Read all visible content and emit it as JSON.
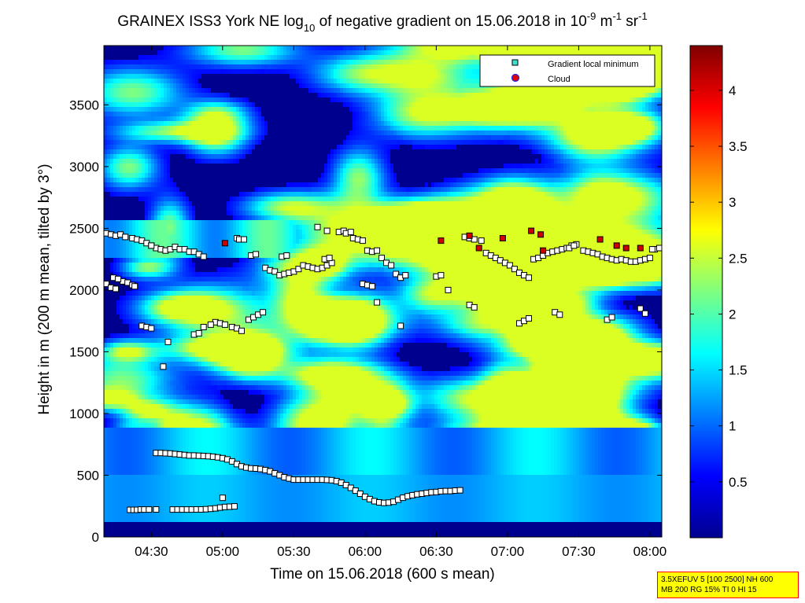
{
  "chart_data": {
    "type": "heatmap",
    "title": {
      "prefix": "GRAINEX ISS3 York NE log",
      "sub": "10",
      "mid": " of negative gradient on 15.06.2018 in 10",
      "sup1": "-9",
      "unit1": " m",
      "sup2": "-1",
      "unit2": " sr",
      "sup3": "-1"
    },
    "xlabel": "Time on 15.06.2018 (600 s mean)",
    "ylabel": "Height in m (200 m mean, tilted by 3°)",
    "x_ticks": [
      "04:30",
      "05:00",
      "05:30",
      "06:00",
      "06:30",
      "07:00",
      "07:30",
      "08:00"
    ],
    "x_tick_minutes": [
      270,
      300,
      330,
      360,
      390,
      420,
      450,
      480
    ],
    "xlim_minutes": [
      250,
      485
    ],
    "y_ticks": [
      0,
      500,
      1000,
      1500,
      2000,
      2500,
      3000,
      3500
    ],
    "ylim": [
      0,
      3980
    ],
    "colorbar": {
      "ticks": [
        0.5,
        1,
        1.5,
        2,
        2.5,
        3,
        3.5,
        4
      ],
      "range": [
        0,
        4.4
      ],
      "colormap": "jet"
    },
    "legend": {
      "placement": "top-right",
      "entries": [
        {
          "label": "Gradient local minimum",
          "marker": "square",
          "color": "#40e0d0"
        },
        {
          "label": "Cloud",
          "marker": "circle",
          "color": "#e00000",
          "edge": "#2020ff"
        }
      ]
    },
    "series": [
      {
        "name": "Gradient local minimum",
        "points": [
          [
            261.0,
            220
          ],
          [
            262.5,
            220
          ],
          [
            264,
            220
          ],
          [
            265.5,
            222
          ],
          [
            267,
            222
          ],
          [
            269,
            222
          ],
          [
            272,
            223
          ],
          [
            279.0,
            222
          ],
          [
            281,
            222
          ],
          [
            283,
            222
          ],
          [
            285,
            222
          ],
          [
            287,
            222
          ],
          [
            289,
            223
          ],
          [
            291,
            223
          ],
          [
            293,
            225
          ],
          [
            295,
            228
          ],
          [
            297,
            232
          ],
          [
            299,
            238
          ],
          [
            301,
            243
          ],
          [
            303,
            245
          ],
          [
            305,
            248
          ],
          [
            300.0,
            317
          ],
          [
            272.0,
            680
          ],
          [
            274,
            680
          ],
          [
            276,
            678
          ],
          [
            278,
            676
          ],
          [
            280,
            672
          ],
          [
            282,
            668
          ],
          [
            284,
            664
          ],
          [
            286,
            660
          ],
          [
            288,
            660
          ],
          [
            290,
            658
          ],
          [
            292,
            656
          ],
          [
            294,
            654
          ],
          [
            296,
            650
          ],
          [
            298,
            645
          ],
          [
            300,
            638
          ],
          [
            302,
            628
          ],
          [
            304,
            612
          ],
          [
            306,
            590
          ],
          [
            308,
            572
          ],
          [
            310,
            562
          ],
          [
            312,
            556
          ],
          [
            314,
            554
          ],
          [
            316,
            550
          ],
          [
            318,
            542
          ],
          [
            320,
            532
          ],
          [
            322,
            515
          ],
          [
            324,
            500
          ],
          [
            326,
            484
          ],
          [
            328,
            474
          ],
          [
            330,
            464
          ],
          [
            332,
            464
          ],
          [
            334,
            464
          ],
          [
            336,
            464
          ],
          [
            338,
            464
          ],
          [
            340,
            464
          ],
          [
            342,
            464
          ],
          [
            344,
            462
          ],
          [
            346,
            460
          ],
          [
            348,
            452
          ],
          [
            350,
            440
          ],
          [
            352,
            420
          ],
          [
            354,
            398
          ],
          [
            356,
            375
          ],
          [
            358,
            350
          ],
          [
            360,
            326
          ],
          [
            362,
            306
          ],
          [
            364,
            290
          ],
          [
            366,
            280
          ],
          [
            368,
            276
          ],
          [
            370,
            278
          ],
          [
            372,
            285
          ],
          [
            374,
            302
          ],
          [
            376,
            318
          ],
          [
            378,
            330
          ],
          [
            380,
            338
          ],
          [
            382,
            346
          ],
          [
            384,
            350
          ],
          [
            386,
            356
          ],
          [
            388,
            362
          ],
          [
            390,
            364
          ],
          [
            392,
            370
          ],
          [
            394,
            372
          ],
          [
            396,
            372
          ],
          [
            398,
            376
          ],
          [
            400,
            378
          ],
          [
            251,
            2460
          ],
          [
            253,
            2450
          ],
          [
            255,
            2440
          ],
          [
            257,
            2450
          ],
          [
            259,
            2430
          ],
          [
            262,
            2420
          ],
          [
            264,
            2410
          ],
          [
            266,
            2400
          ],
          [
            268,
            2380
          ],
          [
            270,
            2360
          ],
          [
            272,
            2340
          ],
          [
            274,
            2330
          ],
          [
            276,
            2320
          ],
          [
            278,
            2330
          ],
          [
            280,
            2350
          ],
          [
            282,
            2330
          ],
          [
            284,
            2330
          ],
          [
            286,
            2310
          ],
          [
            288,
            2310
          ],
          [
            290,
            2290
          ],
          [
            292,
            2270
          ],
          [
            306,
            2420
          ],
          [
            307,
            2410
          ],
          [
            309,
            2410
          ],
          [
            312,
            2280
          ],
          [
            314,
            2290
          ],
          [
            318,
            2180
          ],
          [
            320,
            2160
          ],
          [
            322,
            2150
          ],
          [
            324,
            2120
          ],
          [
            326,
            2130
          ],
          [
            328,
            2140
          ],
          [
            330,
            2150
          ],
          [
            332,
            2170
          ],
          [
            334,
            2200
          ],
          [
            336,
            2190
          ],
          [
            338,
            2180
          ],
          [
            340,
            2170
          ],
          [
            342,
            2180
          ],
          [
            344,
            2200
          ],
          [
            346,
            2220
          ],
          [
            349,
            2470
          ],
          [
            351,
            2480
          ],
          [
            352,
            2460
          ],
          [
            354,
            2470
          ],
          [
            355,
            2420
          ],
          [
            357,
            2410
          ],
          [
            359,
            2400
          ],
          [
            361,
            2320
          ],
          [
            363,
            2310
          ],
          [
            365,
            2320
          ],
          [
            367,
            2260
          ],
          [
            369,
            2220
          ],
          [
            371,
            2200
          ],
          [
            373,
            2130
          ],
          [
            375,
            2100
          ],
          [
            377,
            2120
          ],
          [
            402,
            2430
          ],
          [
            404,
            2420
          ],
          [
            406,
            2410
          ],
          [
            409,
            2400
          ],
          [
            411,
            2300
          ],
          [
            413,
            2280
          ],
          [
            415,
            2260
          ],
          [
            417,
            2240
          ],
          [
            419,
            2220
          ],
          [
            421,
            2200
          ],
          [
            423,
            2170
          ],
          [
            425,
            2140
          ],
          [
            427,
            2120
          ],
          [
            429,
            2100
          ],
          [
            431,
            2250
          ],
          [
            433,
            2260
          ],
          [
            435,
            2280
          ],
          [
            437,
            2300
          ],
          [
            439,
            2310
          ],
          [
            441,
            2320
          ],
          [
            443,
            2330
          ],
          [
            445,
            2340
          ],
          [
            447,
            2360
          ],
          [
            449,
            2370
          ],
          [
            452,
            2320
          ],
          [
            454,
            2310
          ],
          [
            456,
            2300
          ],
          [
            458,
            2290
          ],
          [
            460,
            2270
          ],
          [
            462,
            2260
          ],
          [
            464,
            2250
          ],
          [
            466,
            2240
          ],
          [
            468,
            2250
          ],
          [
            470,
            2240
          ],
          [
            472,
            2230
          ],
          [
            474,
            2230
          ],
          [
            476,
            2240
          ],
          [
            478,
            2250
          ],
          [
            480,
            2260
          ],
          [
            482,
            2330
          ],
          [
            484,
            2340
          ],
          [
            251,
            2050
          ],
          [
            253,
            2020
          ],
          [
            255,
            2010
          ],
          [
            258,
            2070
          ],
          [
            260,
            2060
          ],
          [
            262,
            2040
          ],
          [
            263,
            2030
          ],
          [
            266,
            1710
          ],
          [
            268,
            1700
          ],
          [
            270,
            1690
          ],
          [
            297,
            1740
          ],
          [
            299,
            1730
          ],
          [
            301,
            1720
          ],
          [
            304,
            1700
          ],
          [
            306,
            1690
          ],
          [
            308,
            1670
          ],
          [
            311,
            1760
          ],
          [
            313,
            1780
          ],
          [
            315,
            1800
          ],
          [
            317,
            1820
          ],
          [
            254,
            2100
          ],
          [
            256,
            2090
          ],
          [
            275,
            1380
          ],
          [
            288,
            1640
          ],
          [
            290,
            1650
          ],
          [
            292,
            1700
          ],
          [
            295,
            1720
          ],
          [
            325,
            2270
          ],
          [
            327,
            2280
          ],
          [
            343,
            2250
          ],
          [
            345,
            2260
          ],
          [
            359,
            2050
          ],
          [
            361,
            2040
          ],
          [
            363,
            2030
          ],
          [
            375,
            1710
          ],
          [
            390,
            2110
          ],
          [
            392,
            2120
          ],
          [
            404,
            1880
          ],
          [
            406,
            1860
          ],
          [
            425,
            1730
          ],
          [
            427,
            1750
          ],
          [
            429,
            1770
          ],
          [
            440,
            1820
          ],
          [
            442,
            1800
          ],
          [
            446,
            2340
          ],
          [
            448,
            2360
          ],
          [
            462,
            1760
          ],
          [
            464,
            1780
          ],
          [
            476,
            1850
          ],
          [
            478,
            1810
          ],
          [
            481,
            2330
          ],
          [
            484,
            2340
          ],
          [
            270,
            2360
          ],
          [
            277,
            1580
          ],
          [
            340,
            2510
          ],
          [
            344,
            2480
          ],
          [
            365,
            1900
          ],
          [
            395,
            2000
          ]
        ]
      },
      {
        "name": "Cloud",
        "points": [
          [
            301,
            2380
          ],
          [
            392,
            2400
          ],
          [
            404,
            2440
          ],
          [
            408,
            2340
          ],
          [
            418,
            2420
          ],
          [
            430,
            2480
          ],
          [
            434,
            2450
          ],
          [
            435,
            2320
          ],
          [
            459,
            2410
          ],
          [
            466,
            2360
          ],
          [
            470,
            2340
          ],
          [
            476,
            2340
          ]
        ]
      }
    ]
  },
  "infobox": {
    "line1": "3.5XEFUV 5 [100 2500] NH 600",
    "line2": "MB 200 RG 15% TI 0 HI 15"
  }
}
